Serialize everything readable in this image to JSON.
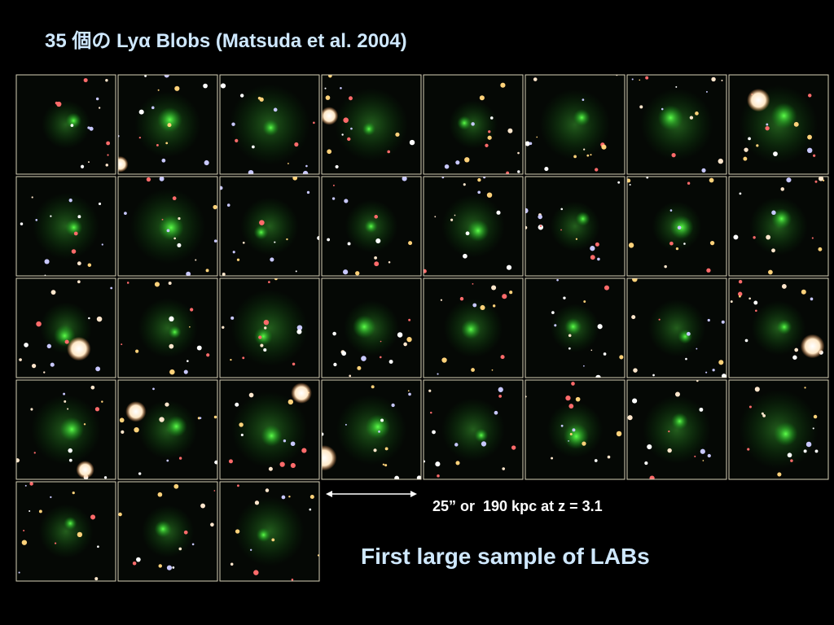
{
  "header": {
    "title": "35 個の Lyα Blobs (Matsuda et al. 2004)"
  },
  "scale_bar": {
    "label": "25” or  190 kpc at z = 3.1"
  },
  "caption": "First large sample of LABs"
}
